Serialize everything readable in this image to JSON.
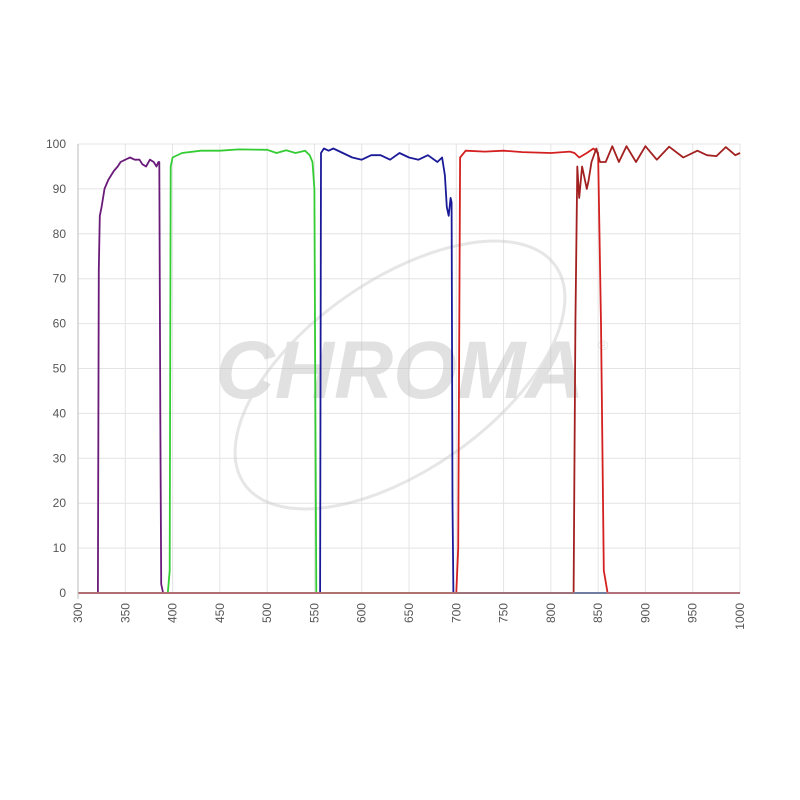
{
  "chart_data": {
    "type": "line",
    "title": "",
    "xlabel": "",
    "ylabel": "",
    "xlim": [
      300,
      1000
    ],
    "ylim": [
      0,
      100
    ],
    "grid": true,
    "xticks": [
      "300",
      "350",
      "400",
      "450",
      "500",
      "550",
      "600",
      "650",
      "700",
      "750",
      "800",
      "850",
      "900",
      "950",
      "1000"
    ],
    "yticks": [
      "0",
      "10",
      "20",
      "30",
      "40",
      "50",
      "60",
      "70",
      "80",
      "90",
      "100"
    ],
    "watermark": "CHROMA®",
    "series": [
      {
        "color": "#6a1b7a",
        "x": [
          300,
          321,
          322,
          323,
          325,
          328,
          332,
          335,
          338,
          342,
          345,
          350,
          355,
          360,
          365,
          368,
          372,
          376,
          380,
          383,
          385,
          386,
          387,
          388,
          390,
          1000
        ],
        "y": [
          0,
          0,
          72,
          84,
          86,
          90,
          92,
          93,
          94,
          95,
          96,
          96.5,
          97,
          96.5,
          96.5,
          95.5,
          95,
          96.5,
          96,
          95,
          96,
          96,
          40,
          2,
          0,
          0
        ]
      },
      {
        "color": "#33cc33",
        "x": [
          300,
          395,
          397,
          398,
          400,
          410,
          430,
          450,
          470,
          500,
          510,
          520,
          530,
          540,
          545,
          548,
          550,
          551,
          552,
          1000
        ],
        "y": [
          0,
          0,
          5,
          95,
          97,
          98,
          98.5,
          98.5,
          98.8,
          98.7,
          98,
          98.6,
          98,
          98.5,
          97.5,
          96,
          90,
          40,
          0,
          0
        ]
      },
      {
        "color": "#1a1a99",
        "x": [
          300,
          555,
          556,
          557,
          560,
          565,
          570,
          580,
          590,
          600,
          610,
          620,
          630,
          640,
          650,
          660,
          670,
          680,
          685,
          688,
          690,
          692,
          694,
          695,
          696,
          697,
          1000
        ],
        "y": [
          0,
          0,
          0,
          98,
          99,
          98.5,
          99,
          98,
          97,
          96.5,
          97.5,
          97.5,
          96.5,
          98,
          97,
          96.5,
          97.5,
          96,
          97,
          93,
          86,
          84,
          88,
          87,
          20,
          0,
          0
        ]
      },
      {
        "color": "#d42020",
        "x": [
          300,
          700,
          702,
          704,
          710,
          730,
          750,
          770,
          800,
          820,
          825,
          830,
          838,
          845,
          850,
          853,
          856,
          860,
          1000
        ],
        "y": [
          0,
          0,
          10,
          97,
          98.5,
          98.3,
          98.5,
          98.2,
          98,
          98.3,
          98,
          97,
          98,
          99,
          98,
          60,
          5,
          0,
          0
        ]
      },
      {
        "color": "#a32020",
        "x": [
          300,
          824,
          826,
          828,
          830,
          833,
          838,
          840,
          843,
          848,
          852,
          858,
          865,
          872,
          880,
          890,
          900,
          912,
          925,
          940,
          955,
          965,
          975,
          985,
          995,
          1000
        ],
        "y": [
          0,
          0,
          60,
          95,
          88,
          95,
          90,
          92,
          96,
          99,
          96,
          96,
          99.5,
          96,
          99.5,
          96,
          99.5,
          96.5,
          99.4,
          97,
          98.5,
          97.5,
          97.3,
          99.3,
          97.5,
          98
        ]
      }
    ]
  }
}
